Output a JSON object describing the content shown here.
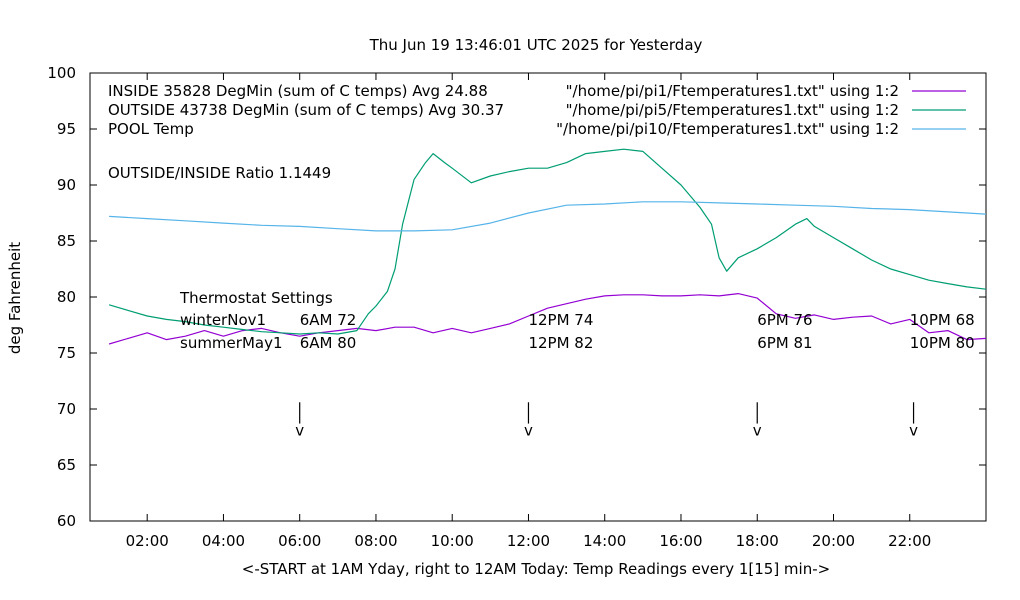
{
  "chart_data": {
    "type": "line",
    "title": "Thu Jun 19 13:46:01 UTC 2025 for Yesterday",
    "xlabel": "<-START at 1AM Yday, right to 12AM Today:  Temp Readings every 1[15] min->",
    "ylabel": "deg Fahrenheit",
    "xlim": [
      0.5,
      24
    ],
    "ylim": [
      60,
      100
    ],
    "x_ticks": [
      {
        "hour": 2,
        "label": "02:00"
      },
      {
        "hour": 4,
        "label": "04:00"
      },
      {
        "hour": 6,
        "label": "06:00"
      },
      {
        "hour": 8,
        "label": "08:00"
      },
      {
        "hour": 10,
        "label": "10:00"
      },
      {
        "hour": 12,
        "label": "12:00"
      },
      {
        "hour": 14,
        "label": "14:00"
      },
      {
        "hour": 16,
        "label": "16:00"
      },
      {
        "hour": 18,
        "label": "18:00"
      },
      {
        "hour": 20,
        "label": "20:00"
      },
      {
        "hour": 22,
        "label": "22:00"
      }
    ],
    "y_ticks": [
      60,
      65,
      70,
      75,
      80,
      85,
      90,
      95,
      100
    ],
    "legend_position": "top",
    "series": [
      {
        "name": "INSIDE 35828 DegMin (sum of C temps) Avg 24.88",
        "source": "\"/home/pi/pi1/Ftemperatures1.txt\" using 1:2",
        "color": "#9400d3",
        "x": [
          1.0,
          1.5,
          2.0,
          2.5,
          3.0,
          3.5,
          4.0,
          4.5,
          5.0,
          5.5,
          6.0,
          6.5,
          7.0,
          7.5,
          8.0,
          8.5,
          9.0,
          9.5,
          10.0,
          10.5,
          11.0,
          11.5,
          12.0,
          12.5,
          13.0,
          13.5,
          14.0,
          14.5,
          15.0,
          15.5,
          16.0,
          16.5,
          17.0,
          17.5,
          18.0,
          18.5,
          19.0,
          19.5,
          20.0,
          20.5,
          21.0,
          21.5,
          22.0,
          22.5,
          23.0,
          23.5,
          24.0
        ],
        "y": [
          75.8,
          76.3,
          76.8,
          76.2,
          76.5,
          77.0,
          76.5,
          77.0,
          77.2,
          76.8,
          76.5,
          76.8,
          77.0,
          77.2,
          77.0,
          77.3,
          77.3,
          76.8,
          77.2,
          76.8,
          77.2,
          77.6,
          78.3,
          79.0,
          79.4,
          79.8,
          80.1,
          80.2,
          80.2,
          80.1,
          80.1,
          80.2,
          80.1,
          80.3,
          79.9,
          78.5,
          78.1,
          78.4,
          78.0,
          78.2,
          78.3,
          77.6,
          78.0,
          76.8,
          77.0,
          76.2,
          76.3
        ]
      },
      {
        "name": "OUTSIDE 43738 DegMin (sum of C temps) Avg 30.37",
        "source": "\"/home/pi/pi5/Ftemperatures1.txt\" using 1:2",
        "color": "#009e73",
        "x": [
          1.0,
          1.5,
          2.0,
          2.5,
          3.0,
          3.5,
          4.0,
          4.5,
          5.0,
          5.5,
          6.0,
          6.5,
          7.0,
          7.5,
          7.8,
          8.0,
          8.3,
          8.5,
          8.7,
          9.0,
          9.3,
          9.5,
          9.8,
          10.0,
          10.5,
          11.0,
          11.5,
          12.0,
          12.5,
          13.0,
          13.5,
          14.0,
          14.5,
          15.0,
          15.5,
          16.0,
          16.5,
          16.8,
          17.0,
          17.2,
          17.5,
          18.0,
          18.5,
          19.0,
          19.3,
          19.5,
          20.0,
          20.5,
          21.0,
          21.5,
          22.0,
          22.5,
          23.0,
          23.5,
          24.0
        ],
        "y": [
          79.3,
          78.8,
          78.3,
          78.0,
          77.8,
          77.5,
          77.3,
          77.1,
          76.9,
          76.8,
          76.7,
          76.8,
          76.7,
          77.0,
          78.5,
          79.2,
          80.5,
          82.5,
          86.5,
          90.5,
          92.0,
          92.8,
          92.0,
          91.5,
          90.2,
          90.8,
          91.2,
          91.5,
          91.5,
          92.0,
          92.8,
          93.0,
          93.2,
          93.0,
          91.5,
          90.0,
          88.0,
          86.5,
          83.5,
          82.3,
          83.5,
          84.3,
          85.3,
          86.5,
          87.0,
          86.3,
          85.3,
          84.3,
          83.3,
          82.5,
          82.0,
          81.5,
          81.2,
          80.9,
          80.7
        ]
      },
      {
        "name": "POOL Temp",
        "source": "\"/home/pi/pi10/Ftemperatures1.txt\" using 1:2",
        "color": "#56b4e9",
        "x": [
          1.0,
          2.0,
          3.0,
          4.0,
          5.0,
          6.0,
          7.0,
          8.0,
          9.0,
          10.0,
          11.0,
          12.0,
          13.0,
          14.0,
          15.0,
          16.0,
          17.0,
          18.0,
          19.0,
          20.0,
          21.0,
          22.0,
          23.0,
          24.0
        ],
        "y": [
          87.2,
          87.0,
          86.8,
          86.6,
          86.4,
          86.3,
          86.1,
          85.9,
          85.9,
          86.0,
          86.6,
          87.5,
          88.2,
          88.3,
          88.5,
          88.5,
          88.4,
          88.3,
          88.2,
          88.1,
          87.9,
          87.8,
          87.6,
          87.4
        ]
      }
    ],
    "annotations": {
      "ratio": "OUTSIDE/INSIDE Ratio 1.1449",
      "thermostat_title": "Thermostat Settings",
      "thermostat_rows": [
        {
          "name": "winterNov1",
          "settings": [
            "6AM 72",
            "12PM 74",
            "6PM 76",
            "10PM 68"
          ],
          "y": 78
        },
        {
          "name": "summerMay1",
          "settings": [
            "6AM 80",
            "12PM 82",
            "6PM 81",
            "10PM 80"
          ],
          "y": 76
        }
      ],
      "thermostat_label_x": [
        6.0,
        12.0,
        18.0,
        22.0
      ],
      "markers": [
        {
          "hour": 6.0,
          "label": "v"
        },
        {
          "hour": 12.0,
          "label": "v"
        },
        {
          "hour": 18.0,
          "label": "v"
        },
        {
          "hour": 22.1,
          "label": "v"
        }
      ],
      "marker_y_top": 70.6,
      "marker_y_bottom": 68.7
    }
  }
}
